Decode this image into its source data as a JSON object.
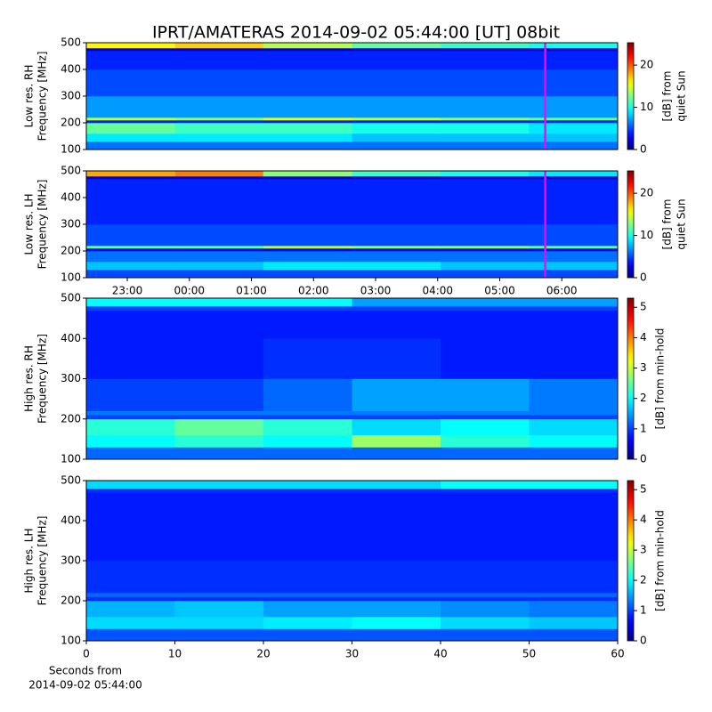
{
  "title": "IPRT/AMATERAS 2014-09-02 05:44:00 [UT]   08bit",
  "chart_data": [
    {
      "type": "heatmap",
      "ylabel": [
        "Low res. RH",
        "Frequency [MHz]"
      ],
      "ylim": [
        100,
        500
      ],
      "yticks": [
        100,
        200,
        300,
        400,
        500
      ],
      "xlim": [
        22.34,
        30.9
      ],
      "xbins": [
        22.34,
        23.77,
        25.19,
        26.62,
        28.05,
        29.47,
        30.9
      ],
      "ybins": [
        100,
        130,
        160,
        200,
        210,
        220,
        300,
        400,
        470,
        480,
        500
      ],
      "values": [
        [
          6,
          6,
          6,
          6,
          6,
          6
        ],
        [
          9,
          9,
          9,
          8,
          8,
          8
        ],
        [
          12,
          11,
          11,
          10,
          10,
          9
        ],
        [
          4,
          4,
          4,
          4,
          4,
          4
        ],
        [
          14,
          13,
          15,
          14,
          13,
          12
        ],
        [
          7,
          7,
          7,
          7,
          7,
          7
        ],
        [
          5,
          5,
          5,
          5,
          5,
          5
        ],
        [
          4,
          4,
          4,
          4,
          4,
          4
        ],
        [
          2,
          2,
          2,
          2,
          2,
          2
        ],
        [
          16,
          17,
          14,
          12,
          11,
          10
        ]
      ],
      "marker_x": 29.733,
      "marker_color": "#ff00ff",
      "clim": [
        0,
        25.3
      ],
      "cticks": [
        0,
        10,
        20
      ],
      "clabel": [
        "[dB] from",
        "quiet Sun"
      ]
    },
    {
      "type": "heatmap",
      "ylabel": [
        "Low res. LH",
        "Frequency [MHz]"
      ],
      "ylim": [
        100,
        500
      ],
      "yticks": [
        100,
        200,
        300,
        400,
        500
      ],
      "xlim": [
        22.34,
        30.9
      ],
      "xticks": [
        {
          "value": 23,
          "label": "23:00"
        },
        {
          "value": 24,
          "label": "00:00"
        },
        {
          "value": 25,
          "label": "01:00"
        },
        {
          "value": 26,
          "label": "02:00"
        },
        {
          "value": 27,
          "label": "03:00"
        },
        {
          "value": 28,
          "label": "04:00"
        },
        {
          "value": 29,
          "label": "05:00"
        },
        {
          "value": 30,
          "label": "06:00"
        }
      ],
      "xbins": [
        22.34,
        23.77,
        25.19,
        26.62,
        28.05,
        29.47,
        30.9
      ],
      "ybins": [
        100,
        130,
        160,
        200,
        210,
        220,
        300,
        400,
        470,
        480,
        500
      ],
      "values": [
        [
          5,
          5,
          5,
          5,
          5,
          5
        ],
        [
          8,
          8,
          9,
          9,
          8,
          8
        ],
        [
          6,
          6,
          6,
          6,
          6,
          6
        ],
        [
          3,
          3,
          3,
          3,
          3,
          3
        ],
        [
          12,
          12,
          14,
          13,
          13,
          12
        ],
        [
          5,
          5,
          5,
          5,
          5,
          5
        ],
        [
          4,
          4,
          4,
          4,
          4,
          4
        ],
        [
          4,
          4,
          4,
          4,
          4,
          4
        ],
        [
          2,
          2,
          2,
          2,
          2,
          2
        ],
        [
          18,
          19,
          13,
          11,
          10,
          9
        ]
      ],
      "marker_x": 29.733,
      "marker_color": "#ff00ff",
      "clim": [
        0,
        25.3
      ],
      "cticks": [
        0,
        10,
        20
      ],
      "clabel": [
        "[dB] from",
        "quiet Sun"
      ]
    },
    {
      "type": "heatmap",
      "ylabel": [
        "High res. RH",
        "Frequency [MHz]"
      ],
      "ylim": [
        100,
        500
      ],
      "yticks": [
        100,
        200,
        300,
        400,
        500
      ],
      "xlim": [
        0,
        60
      ],
      "xbins": [
        0,
        10,
        20,
        30,
        40,
        50,
        60
      ],
      "ybins": [
        100,
        130,
        160,
        200,
        210,
        220,
        300,
        400,
        470,
        480,
        500
      ],
      "values": [
        [
          1.2,
          1.2,
          1.2,
          1.2,
          1.2,
          1.2
        ],
        [
          2.0,
          2.2,
          2.0,
          2.8,
          2.2,
          2.0
        ],
        [
          2.2,
          2.5,
          2.2,
          1.8,
          2.0,
          1.8
        ],
        [
          1.0,
          1.0,
          1.0,
          1.0,
          1.0,
          1.0
        ],
        [
          1.3,
          1.3,
          1.3,
          1.3,
          1.3,
          1.3
        ],
        [
          1.0,
          1.0,
          1.2,
          1.5,
          1.5,
          1.3
        ],
        [
          0.8,
          0.8,
          0.9,
          0.9,
          0.8,
          0.8
        ],
        [
          0.8,
          0.8,
          0.8,
          0.8,
          0.8,
          0.8
        ],
        [
          1.0,
          1.0,
          1.0,
          1.0,
          1.0,
          1.0
        ],
        [
          2.0,
          2.0,
          2.0,
          1.5,
          1.5,
          1.5
        ]
      ],
      "clim": [
        0,
        5.3
      ],
      "cticks": [
        0,
        1,
        2,
        3,
        4,
        5
      ],
      "clabel": [
        "[dB] from min-hold"
      ]
    },
    {
      "type": "heatmap",
      "ylabel": [
        "High res. LH",
        "Frequency [MHz]"
      ],
      "ylim": [
        100,
        500
      ],
      "yticks": [
        100,
        200,
        300,
        400,
        500
      ],
      "xlim": [
        0,
        60
      ],
      "xticks": [
        0,
        10,
        20,
        30,
        40,
        50,
        60
      ],
      "xlabel": [
        "Seconds from",
        "2014-09-02 05:44:00"
      ],
      "xbins": [
        0,
        10,
        20,
        30,
        40,
        50,
        60
      ],
      "ybins": [
        100,
        130,
        160,
        200,
        210,
        220,
        300,
        400,
        470,
        480,
        500
      ],
      "values": [
        [
          1.1,
          1.1,
          1.1,
          1.1,
          1.1,
          1.1
        ],
        [
          1.8,
          1.8,
          1.9,
          2.0,
          1.8,
          1.7
        ],
        [
          1.6,
          1.7,
          1.5,
          1.5,
          1.4,
          1.3
        ],
        [
          0.9,
          0.9,
          0.9,
          0.9,
          0.9,
          0.9
        ],
        [
          1.2,
          1.2,
          1.2,
          1.2,
          1.2,
          1.2
        ],
        [
          0.9,
          0.9,
          0.9,
          0.9,
          0.9,
          0.9
        ],
        [
          0.8,
          0.8,
          0.8,
          0.8,
          0.8,
          0.8
        ],
        [
          0.8,
          0.8,
          0.8,
          0.8,
          0.8,
          0.8
        ],
        [
          0.9,
          0.9,
          0.9,
          0.9,
          0.9,
          0.9
        ],
        [
          1.8,
          1.8,
          1.8,
          1.8,
          2.0,
          2.0
        ]
      ],
      "clim": [
        0,
        5.3
      ],
      "cticks": [
        0,
        1,
        2,
        3,
        4,
        5
      ],
      "clabel": [
        "[dB] from min-hold"
      ]
    }
  ]
}
